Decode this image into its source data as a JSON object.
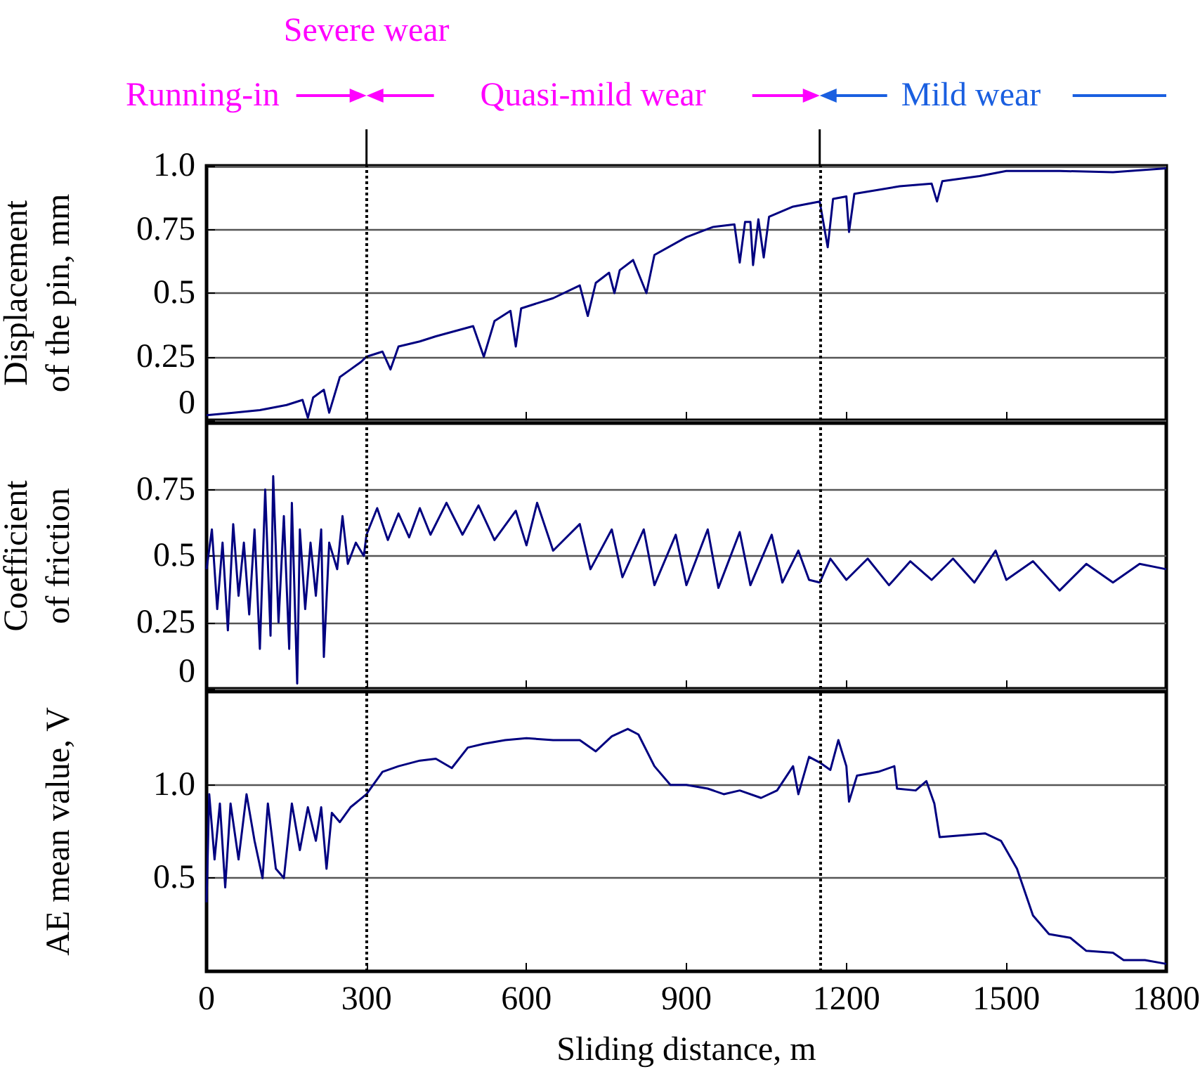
{
  "chart_data": [
    {
      "type": "line",
      "ylabel": "Displacement\nof the pin, mm",
      "color": "#000080",
      "xlim": [
        0,
        1800
      ],
      "xticks": [
        0,
        300,
        600,
        900,
        1200,
        1500,
        1800
      ],
      "ylim": [
        0,
        1
      ],
      "yticks": [
        0,
        0.25,
        0.5,
        0.75,
        {
          "value": 1,
          "label": "1.0"
        }
      ],
      "grid": "y",
      "tick_labels": "y",
      "annotations": [
        "Severe wear",
        "Running-in",
        "Quasi-mild wear",
        "Mild wear"
      ],
      "ref_lines": [
        {
          "axis": "x",
          "value": 300,
          "line_style": "dotted"
        },
        {
          "axis": "x",
          "value": 1150,
          "line_style": "dotted"
        }
      ],
      "x": [
        0,
        50,
        100,
        150,
        180,
        190,
        200,
        220,
        230,
        250,
        270,
        290,
        300,
        330,
        345,
        360,
        400,
        430,
        500,
        520,
        540,
        570,
        580,
        590,
        650,
        700,
        715,
        730,
        755,
        765,
        775,
        800,
        825,
        840,
        900,
        950,
        990,
        1000,
        1010,
        1020,
        1025,
        1035,
        1045,
        1055,
        1100,
        1150,
        1165,
        1175,
        1200,
        1205,
        1215,
        1300,
        1360,
        1370,
        1380,
        1450,
        1500,
        1600,
        1700,
        1800
      ],
      "values": [
        0.02,
        0.03,
        0.04,
        0.06,
        0.08,
        0.01,
        0.09,
        0.12,
        0.03,
        0.17,
        0.2,
        0.23,
        0.25,
        0.27,
        0.2,
        0.29,
        0.31,
        0.33,
        0.37,
        0.25,
        0.39,
        0.43,
        0.29,
        0.44,
        0.48,
        0.53,
        0.41,
        0.54,
        0.58,
        0.5,
        0.59,
        0.63,
        0.5,
        0.65,
        0.72,
        0.76,
        0.77,
        0.62,
        0.78,
        0.78,
        0.61,
        0.79,
        0.64,
        0.8,
        0.84,
        0.86,
        0.68,
        0.87,
        0.88,
        0.74,
        0.89,
        0.92,
        0.93,
        0.86,
        0.94,
        0.96,
        0.98,
        0.98,
        0.975,
        0.99
      ]
    },
    {
      "type": "line",
      "ylabel": "Coefficient\nof friction",
      "color": "#000080",
      "xlim": [
        0,
        1800
      ],
      "xticks": [
        0,
        300,
        600,
        900,
        1200,
        1500,
        1800
      ],
      "ylim": [
        0,
        1
      ],
      "yticks": [
        0,
        0.25,
        0.5,
        0.75
      ],
      "grid": "y",
      "tick_labels": "y",
      "ref_lines": [
        {
          "axis": "x",
          "value": 300,
          "line_style": "dotted"
        },
        {
          "axis": "x",
          "value": 1150,
          "line_style": "dotted"
        }
      ],
      "x": [
        0,
        10,
        20,
        30,
        40,
        50,
        60,
        70,
        80,
        90,
        100,
        110,
        120,
        125,
        135,
        145,
        155,
        160,
        170,
        175,
        185,
        195,
        205,
        215,
        220,
        230,
        245,
        255,
        265,
        280,
        295,
        300,
        320,
        340,
        360,
        380,
        400,
        420,
        450,
        480,
        510,
        540,
        580,
        600,
        620,
        650,
        700,
        720,
        760,
        780,
        820,
        840,
        880,
        900,
        940,
        960,
        1000,
        1020,
        1060,
        1080,
        1110,
        1130,
        1150,
        1170,
        1200,
        1240,
        1280,
        1320,
        1360,
        1400,
        1440,
        1480,
        1500,
        1550,
        1600,
        1650,
        1700,
        1750,
        1800
      ],
      "values": [
        0.45,
        0.6,
        0.3,
        0.55,
        0.22,
        0.62,
        0.35,
        0.55,
        0.28,
        0.6,
        0.15,
        0.75,
        0.2,
        0.8,
        0.25,
        0.65,
        0.15,
        0.7,
        0.02,
        0.6,
        0.3,
        0.55,
        0.35,
        0.6,
        0.12,
        0.55,
        0.45,
        0.65,
        0.47,
        0.55,
        0.5,
        0.58,
        0.68,
        0.56,
        0.66,
        0.57,
        0.68,
        0.58,
        0.7,
        0.58,
        0.69,
        0.56,
        0.67,
        0.54,
        0.7,
        0.52,
        0.62,
        0.45,
        0.6,
        0.42,
        0.6,
        0.39,
        0.58,
        0.39,
        0.6,
        0.38,
        0.59,
        0.39,
        0.58,
        0.4,
        0.52,
        0.41,
        0.4,
        0.49,
        0.41,
        0.49,
        0.39,
        0.48,
        0.41,
        0.49,
        0.4,
        0.52,
        0.41,
        0.48,
        0.37,
        0.47,
        0.4,
        0.47,
        0.45
      ]
    },
    {
      "type": "line",
      "ylabel": "AE mean value, V",
      "xlabel": "Sliding distance, m",
      "color": "#000080",
      "xlim": [
        0,
        1800
      ],
      "xticks": [
        0,
        300,
        600,
        900,
        1200,
        1500,
        1800
      ],
      "ylim": [
        0,
        1.5
      ],
      "yticks": [
        0.5,
        {
          "value": 1,
          "label": "1.0"
        }
      ],
      "grid": "y",
      "ref_lines": [
        {
          "axis": "x",
          "value": 300,
          "line_style": "dotted"
        },
        {
          "axis": "x",
          "value": 1150,
          "line_style": "dotted"
        }
      ],
      "x": [
        0,
        5,
        15,
        25,
        35,
        45,
        60,
        75,
        90,
        105,
        115,
        130,
        145,
        160,
        175,
        190,
        205,
        215,
        225,
        235,
        250,
        270,
        300,
        330,
        360,
        400,
        430,
        460,
        490,
        520,
        560,
        600,
        650,
        700,
        730,
        760,
        790,
        810,
        840,
        870,
        900,
        940,
        970,
        1000,
        1040,
        1070,
        1100,
        1110,
        1130,
        1150,
        1170,
        1185,
        1200,
        1205,
        1220,
        1260,
        1290,
        1295,
        1330,
        1350,
        1365,
        1375,
        1420,
        1460,
        1490,
        1520,
        1550,
        1580,
        1620,
        1650,
        1700,
        1720,
        1760,
        1800
      ],
      "values": [
        0.37,
        0.95,
        0.6,
        0.9,
        0.45,
        0.9,
        0.6,
        0.95,
        0.7,
        0.5,
        0.9,
        0.55,
        0.5,
        0.9,
        0.65,
        0.88,
        0.7,
        0.88,
        0.55,
        0.85,
        0.8,
        0.88,
        0.95,
        1.07,
        1.1,
        1.13,
        1.14,
        1.09,
        1.2,
        1.22,
        1.24,
        1.25,
        1.24,
        1.24,
        1.18,
        1.26,
        1.3,
        1.27,
        1.1,
        1.0,
        1.0,
        0.98,
        0.95,
        0.97,
        0.93,
        0.97,
        1.1,
        0.95,
        1.15,
        1.12,
        1.08,
        1.24,
        1.1,
        0.91,
        1.05,
        1.07,
        1.1,
        0.98,
        0.97,
        1.02,
        0.9,
        0.72,
        0.73,
        0.74,
        0.7,
        0.55,
        0.3,
        0.2,
        0.18,
        0.11,
        0.1,
        0.06,
        0.06,
        0.04
      ]
    }
  ]
}
